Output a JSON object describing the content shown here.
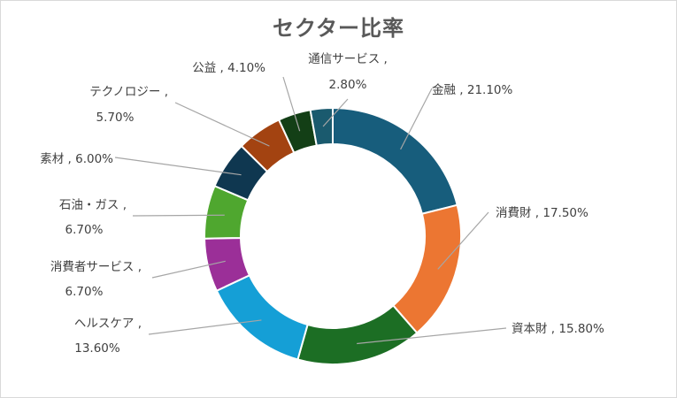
{
  "chart_data": {
    "type": "pie",
    "title": "セクター比率",
    "categories": [
      "金融",
      "消費財",
      "資本財",
      "ヘルスケア",
      "消費者サービス",
      "石油・ガス",
      "素材",
      "テクノロジー",
      "公益",
      "通信サービス"
    ],
    "values": [
      21.1,
      17.5,
      15.8,
      13.6,
      6.7,
      6.7,
      6.0,
      5.7,
      4.1,
      2.8
    ],
    "value_labels": [
      "21.10%",
      "17.50%",
      "15.80%",
      "13.60%",
      "6.70%",
      "6.70%",
      "6.00%",
      "5.70%",
      "4.10%",
      "2.80%"
    ],
    "colors": [
      "#175d7c",
      "#ec7632",
      "#1c6e24",
      "#159fd6",
      "#9b2f98",
      "#4fa72f",
      "#0f3750",
      "#a34311",
      "#133f16",
      "#1a5a6e"
    ],
    "data_labels": [
      {
        "lines": [
          "金融 , 21.10%"
        ]
      },
      {
        "lines": [
          "消費財 , 17.50%"
        ]
      },
      {
        "lines": [
          "資本財 , 15.80%"
        ]
      },
      {
        "lines": [
          "ヘルスケア ,",
          "13.60%"
        ]
      },
      {
        "lines": [
          "消費者サービス ,",
          "6.70%"
        ]
      },
      {
        "lines": [
          "石油・ガス ,",
          "6.70%"
        ]
      },
      {
        "lines": [
          "素材 , 6.00%"
        ]
      },
      {
        "lines": [
          "テクノロジー ,",
          "5.70%"
        ]
      },
      {
        "lines": [
          "公益 , 4.10%"
        ]
      },
      {
        "lines": [
          "通信サービス ,",
          "2.80%"
        ]
      }
    ],
    "donut": true,
    "legend": "none",
    "leader_line_color": "#a6a6a6"
  }
}
